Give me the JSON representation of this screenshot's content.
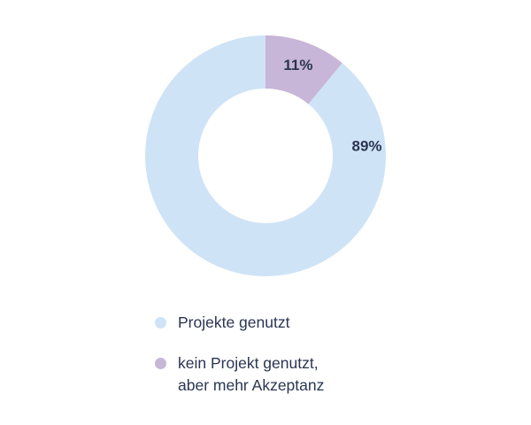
{
  "chart_data": {
    "type": "pie",
    "donut": true,
    "categories": [
      "Projekte genutzt",
      "kein Projekt genutzt,\naber mehr Akzeptanz"
    ],
    "values": [
      89,
      11
    ],
    "labels": [
      "89%",
      "11%"
    ],
    "colors": [
      "#cfe3f6",
      "#c7b6d7"
    ],
    "legend_position": "bottom"
  }
}
